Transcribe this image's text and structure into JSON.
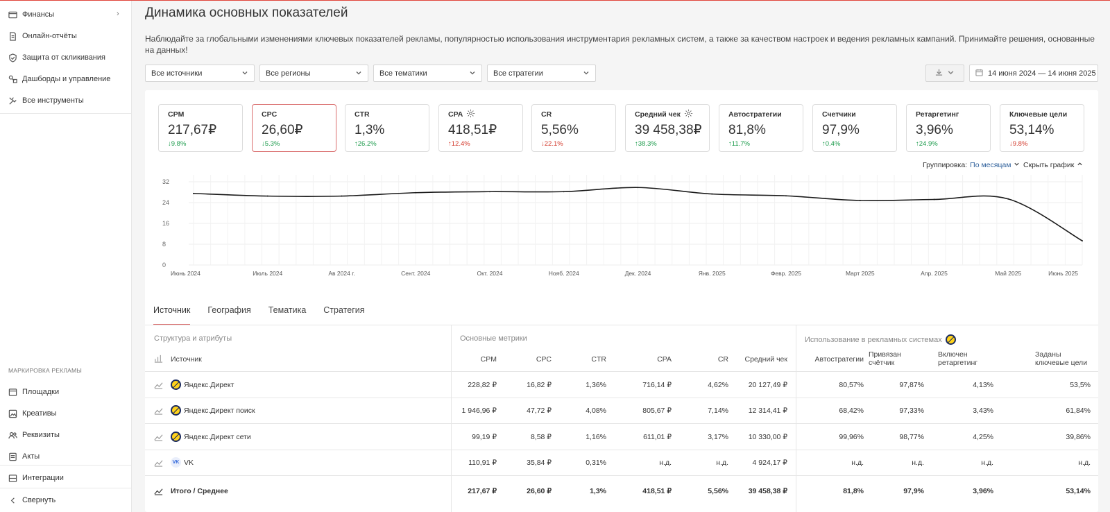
{
  "sidebar": {
    "items": [
      {
        "label": "Финансы"
      },
      {
        "label": "Онлайн-отчёты"
      },
      {
        "label": "Защита от скликивания"
      },
      {
        "label": "Дашборды и управление"
      },
      {
        "label": "Все инструменты"
      }
    ],
    "section_title": "МАРКИРОВКА РЕКЛАМЫ",
    "marking_items": [
      {
        "label": "Площадки"
      },
      {
        "label": "Креативы"
      },
      {
        "label": "Реквизиты"
      },
      {
        "label": "Акты"
      }
    ],
    "integrations": "Интеграции",
    "collapse": "Свернуть"
  },
  "header": {
    "title": "Динамика основных показателей",
    "description": "Наблюдайте за глобальными изменениями ключевых показателей рекламы, популярностью использования инструментария рекламных систем, а также за качеством настроек и ведения рекламных кампаний. Принимайте решения, основанные на данных!"
  },
  "filters": {
    "sources": "Все источники",
    "regions": "Все регионы",
    "topics": "Все тематики",
    "strategies": "Все стратегии",
    "date_range": "14 июня 2024 — 14 июня 2025"
  },
  "kpis": [
    {
      "label": "CPM",
      "value": "217,67₽",
      "delta": "↓9.8%",
      "trend": "up"
    },
    {
      "label": "CPC",
      "value": "26,60₽",
      "delta": "↓5.3%",
      "trend": "up"
    },
    {
      "label": "CTR",
      "value": "1,3%",
      "delta": "↑26.2%",
      "trend": "up"
    },
    {
      "label": "CPA",
      "value": "418,51₽",
      "delta": "↑12.4%",
      "trend": "down"
    },
    {
      "label": "CR",
      "value": "5,56%",
      "delta": "↓22.1%",
      "trend": "down"
    },
    {
      "label": "Средний чек",
      "value": "39 458,38₽",
      "delta": "↑38.3%",
      "trend": "up"
    },
    {
      "label": "Автостратегии",
      "value": "81,8%",
      "delta": "↑11.7%",
      "trend": "up"
    },
    {
      "label": "Счетчики",
      "value": "97,9%",
      "delta": "↑0.4%",
      "trend": "up"
    },
    {
      "label": "Ретаргетинг",
      "value": "3,96%",
      "delta": "↑24.9%",
      "trend": "up"
    },
    {
      "label": "Ключевые цели",
      "value": "53,14%",
      "delta": "↓9.8%",
      "trend": "down"
    }
  ],
  "chart_controls": {
    "grouping_label": "Группировка:",
    "grouping_value": "По месяцам",
    "hide_graph": "Скрыть график"
  },
  "chart_data": {
    "type": "line",
    "x": [
      "Июнь 2024",
      "Июль 2024",
      "Ав 2024 г.",
      "Сент. 2024",
      "Окт. 2024",
      "Нояб. 2024",
      "Дек. 2024",
      "Янв. 2025",
      "Февр. 2025",
      "Март 2025",
      "Апр. 2025",
      "Май 2025",
      "Июнь 2025"
    ],
    "values": [
      27.5,
      26.5,
      26.5,
      27.8,
      28.2,
      28.2,
      29.8,
      27.3,
      26.6,
      24.8,
      25.2,
      25.4,
      9.3
    ],
    "yticks": [
      0,
      8,
      16,
      24,
      32
    ],
    "ylim": [
      0,
      32
    ],
    "grid": true
  },
  "tabs": [
    "Источник",
    "География",
    "Тематика",
    "Стратегия"
  ],
  "table": {
    "group_structure": "Структура и атрибуты",
    "group_metrics": "Основные метрики",
    "group_usage": "Использование в рекламных системах",
    "col_source": "Источник",
    "cols_metrics": [
      "CPM",
      "CPC",
      "CTR",
      "CPA",
      "CR",
      "Средний чек"
    ],
    "cols_usage": [
      [
        "Автостратегии",
        ""
      ],
      [
        "Привязан",
        "счётчик"
      ],
      [
        "Включен",
        "ретаргетинг"
      ],
      [
        "Заданы",
        "ключевые цели"
      ]
    ],
    "rows": [
      {
        "name": "Яндекс.Директ",
        "logo": "yandex",
        "m": [
          "228,82 ₽",
          "16,82 ₽",
          "1,36%",
          "716,14 ₽",
          "4,62%",
          "20 127,49 ₽"
        ],
        "u": [
          "80,57%",
          "97,87%",
          "4,13%",
          "53,5%"
        ]
      },
      {
        "name": "Яндекс.Директ поиск",
        "logo": "yandex",
        "m": [
          "1 946,96 ₽",
          "47,72 ₽",
          "4,08%",
          "805,67 ₽",
          "7,14%",
          "12 314,41 ₽"
        ],
        "u": [
          "68,42%",
          "97,33%",
          "3,43%",
          "61,84%"
        ]
      },
      {
        "name": "Яндекс.Директ сети",
        "logo": "yandex",
        "m": [
          "99,19 ₽",
          "8,58 ₽",
          "1,16%",
          "611,01 ₽",
          "3,17%",
          "10 330,00 ₽"
        ],
        "u": [
          "99,96%",
          "98,77%",
          "4,25%",
          "39,86%"
        ]
      },
      {
        "name": "VK",
        "logo": "vk",
        "m": [
          "110,91 ₽",
          "35,84 ₽",
          "0,31%",
          "н.д.",
          "н.д.",
          "4 924,17 ₽"
        ],
        "u": [
          "н.д.",
          "н.д.",
          "н.д.",
          "н.д."
        ]
      }
    ],
    "total": {
      "name": "Итого / Среднее",
      "m": [
        "217,67 ₽",
        "26,60 ₽",
        "1,3%",
        "418,51 ₽",
        "5,56%",
        "39 458,38 ₽"
      ],
      "u": [
        "81,8%",
        "97,9%",
        "3,96%",
        "53,14%"
      ]
    }
  }
}
